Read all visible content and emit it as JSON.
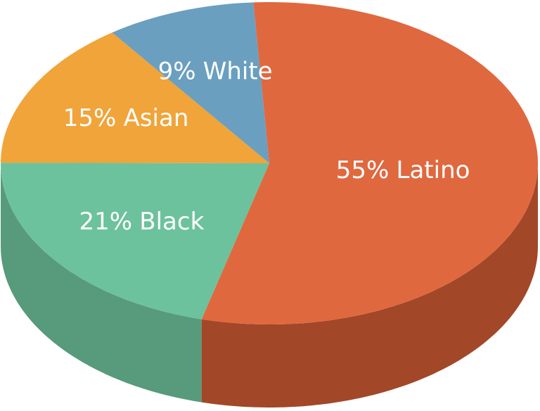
{
  "chart_data": {
    "type": "pie3d",
    "categories": [
      "Latino",
      "Black",
      "Asian",
      "White"
    ],
    "values": [
      55,
      21,
      15,
      9
    ],
    "value_labels": [
      "55%",
      "21%",
      "15%",
      "9%"
    ],
    "colors": [
      "#e0683f",
      "#6cc29c",
      "#f0a43a",
      "#6a9fbf"
    ],
    "side_colors": [
      "#a24728",
      "#579a7c",
      "#b87a2a",
      "#4f7a93"
    ]
  }
}
